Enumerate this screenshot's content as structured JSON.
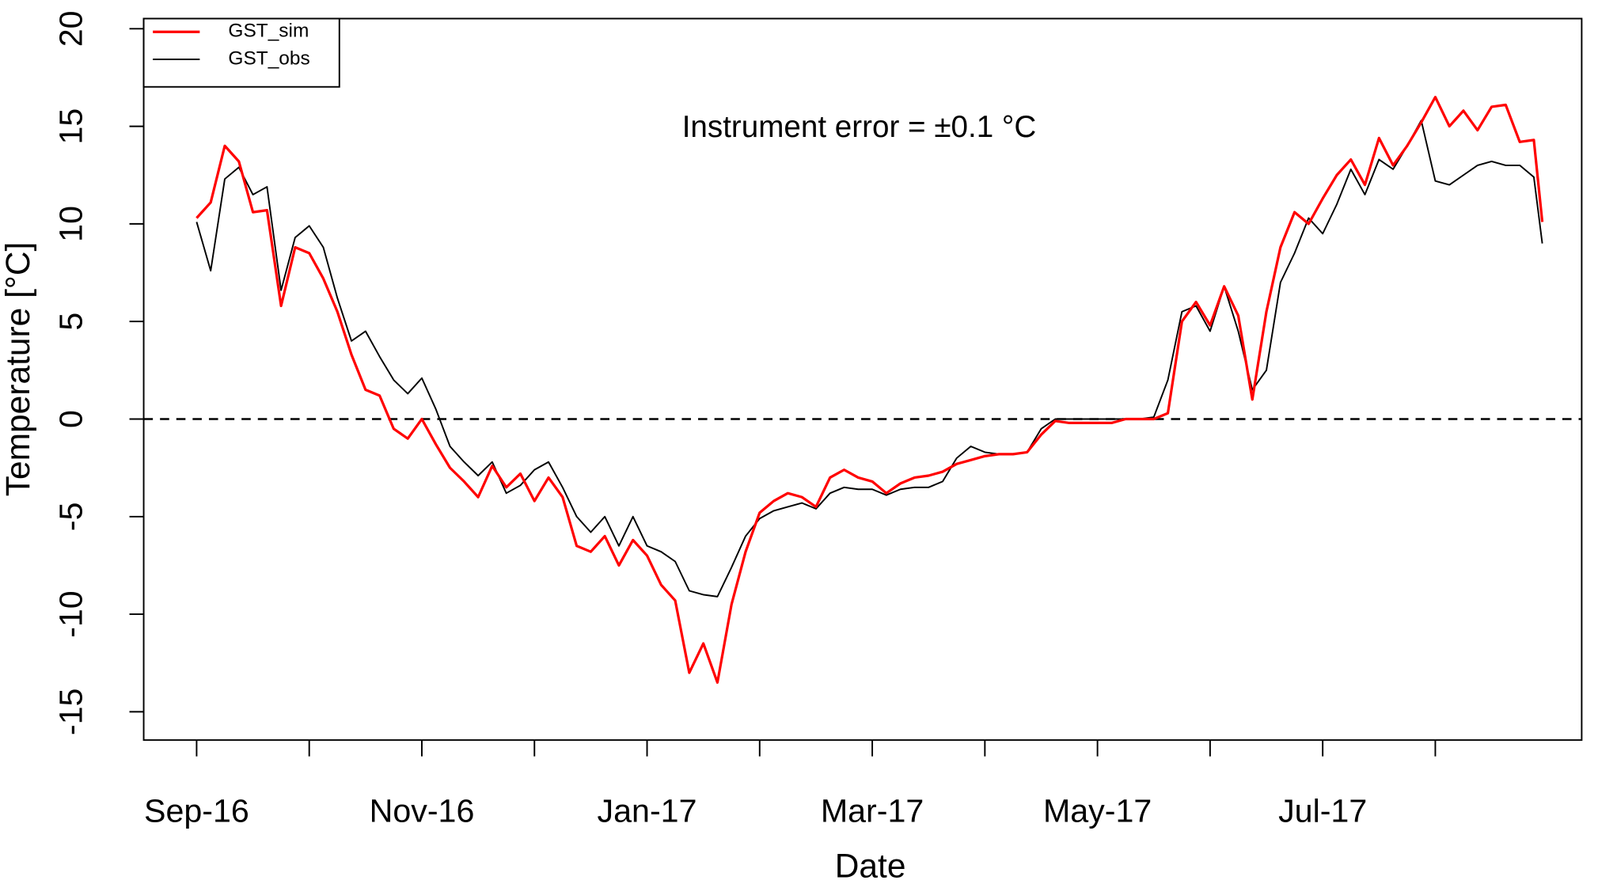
{
  "chart_data": {
    "type": "line",
    "x_label": "Date",
    "y_label": "Temperature [°C]",
    "annotation": "Instrument error = ±0.1 °C",
    "legend": "topleft",
    "hlines": [
      0
    ],
    "xlim": [
      -0.47,
      12.3
    ],
    "ylim": [
      -16.45,
      20.52
    ],
    "yticks": [
      -15,
      -10,
      -5,
      0,
      5,
      10,
      15,
      20
    ],
    "xticks": [
      {
        "value": 0,
        "label": "Sep-16"
      },
      {
        "value": 1,
        "label": null
      },
      {
        "value": 2,
        "label": "Nov-16"
      },
      {
        "value": 3,
        "label": null
      },
      {
        "value": 4,
        "label": "Jan-17"
      },
      {
        "value": 5,
        "label": null
      },
      {
        "value": 6,
        "label": "Mar-17"
      },
      {
        "value": 7,
        "label": null
      },
      {
        "value": 8,
        "label": "May-17"
      },
      {
        "value": 9,
        "label": null
      },
      {
        "value": 10,
        "label": "Jul-17"
      },
      {
        "value": 11,
        "label": null
      }
    ],
    "x": [
      0,
      0.125,
      0.25,
      0.375,
      0.5,
      0.625,
      0.75,
      0.875,
      1,
      1.125,
      1.25,
      1.375,
      1.5,
      1.625,
      1.75,
      1.875,
      2,
      2.125,
      2.25,
      2.375,
      2.5,
      2.625,
      2.75,
      2.875,
      3,
      3.125,
      3.25,
      3.375,
      3.5,
      3.625,
      3.75,
      3.875,
      4,
      4.125,
      4.25,
      4.375,
      4.5,
      4.625,
      4.75,
      4.875,
      5,
      5.125,
      5.25,
      5.375,
      5.5,
      5.625,
      5.75,
      5.875,
      6,
      6.125,
      6.25,
      6.375,
      6.5,
      6.625,
      6.75,
      6.875,
      7,
      7.125,
      7.25,
      7.375,
      7.5,
      7.625,
      7.75,
      7.875,
      8,
      8.125,
      8.25,
      8.375,
      8.5,
      8.625,
      8.75,
      8.875,
      9,
      9.125,
      9.25,
      9.375,
      9.5,
      9.625,
      9.75,
      9.875,
      10,
      10.125,
      10.25,
      10.375,
      10.5,
      10.625,
      10.75,
      10.875,
      11,
      11.125,
      11.25,
      11.375,
      11.5,
      11.625,
      11.75,
      11.875,
      11.95
    ],
    "series": [
      {
        "name": "GST_sim",
        "color": "#ff0000",
        "width": 2.5,
        "values": [
          10.3,
          11.1,
          14,
          13.2,
          10.6,
          10.7,
          5.8,
          8.8,
          8.5,
          7.2,
          5.5,
          3.3,
          1.5,
          1.2,
          -0.5,
          -1.0,
          0.0,
          -1.3,
          -2.5,
          -3.2,
          -4.0,
          -2.4,
          -3.5,
          -2.8,
          -4.2,
          -3.0,
          -4.0,
          -6.5,
          -6.8,
          -6.0,
          -7.5,
          -6.2,
          -7.0,
          -8.5,
          -9.3,
          -13.0,
          -11.5,
          -13.5,
          -9.5,
          -6.8,
          -4.8,
          -4.2,
          -3.8,
          -4.0,
          -4.5,
          -3.0,
          -2.6,
          -3.0,
          -3.2,
          -3.8,
          -3.3,
          -3.0,
          -2.9,
          -2.7,
          -2.3,
          -2.1,
          -1.9,
          -1.8,
          -1.8,
          -1.7,
          -0.8,
          -0.1,
          -0.2,
          -0.2,
          -0.2,
          -0.2,
          0,
          0,
          0,
          0.3,
          5.0,
          6.0,
          4.8,
          6.8,
          5.3,
          1.0,
          5.5,
          8.8,
          10.6,
          10.0,
          11.3,
          12.5,
          13.3,
          12.0,
          14.4,
          13.0,
          14.0,
          15.2,
          16.5,
          15.0,
          15.8,
          14.8,
          16.0,
          16.1,
          14.2,
          14.3,
          10.1
        ]
      },
      {
        "name": "GST_obs",
        "color": "#000000",
        "width": 1.5,
        "values": [
          10.1,
          7.6,
          12.3,
          12.9,
          11.5,
          11.9,
          6.6,
          9.3,
          9.9,
          8.8,
          6.2,
          4.0,
          4.5,
          3.2,
          2.0,
          1.3,
          2.1,
          0.5,
          -1.4,
          -2.2,
          -2.9,
          -2.2,
          -3.8,
          -3.4,
          -2.6,
          -2.2,
          -3.5,
          -5.0,
          -5.8,
          -5.0,
          -6.5,
          -5.0,
          -6.5,
          -6.8,
          -7.3,
          -8.8,
          -9.0,
          -9.1,
          -7.6,
          -6.0,
          -5.1,
          -4.7,
          -4.5,
          -4.3,
          -4.6,
          -3.8,
          -3.5,
          -3.6,
          -3.6,
          -3.9,
          -3.6,
          -3.5,
          -3.5,
          -3.2,
          -2.0,
          -1.4,
          -1.7,
          -1.8,
          -1.8,
          -1.7,
          -0.5,
          0,
          0,
          0,
          0,
          0,
          0,
          0,
          0.1,
          2.0,
          5.5,
          5.8,
          4.5,
          6.8,
          4.5,
          1.5,
          2.5,
          7.0,
          8.5,
          10.3,
          9.5,
          11.0,
          12.8,
          11.5,
          13.3,
          12.8,
          14.0,
          15.3,
          12.2,
          12.0,
          12.5,
          13.0,
          13.2,
          13.0,
          13.0,
          12.4,
          9.0
        ]
      }
    ]
  }
}
